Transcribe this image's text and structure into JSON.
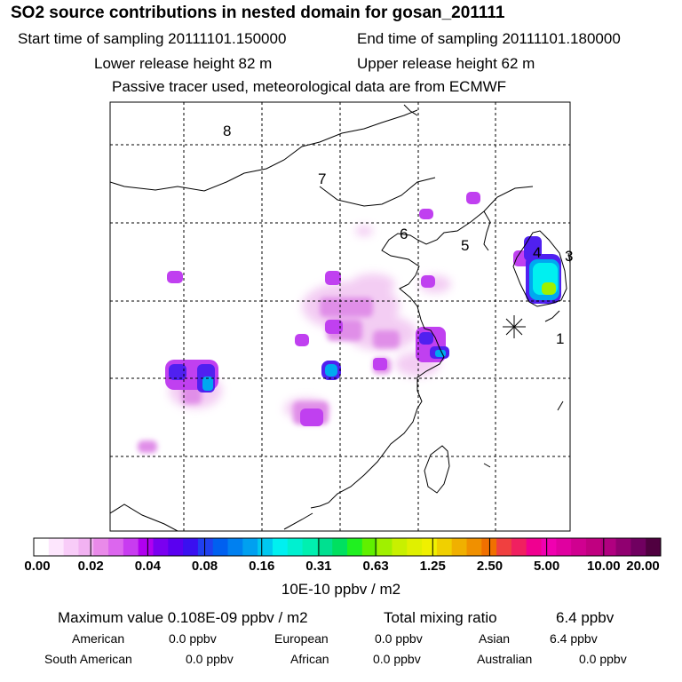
{
  "header": {
    "title": "SO2 source contributions in nested domain for gosan_201111",
    "start_label": "Start time of sampling 20111101.150000",
    "end_label": "End time of sampling 20111101.180000",
    "lower_label": "Lower release height   82 m",
    "upper_label": "Upper release height   62 m",
    "note": "Passive tracer used, meteorological data are from ECMWF"
  },
  "map": {
    "region_labels": [
      "8",
      "7",
      "6",
      "5",
      "4",
      "3",
      "1"
    ],
    "receptor_marker": "station-asterisk"
  },
  "colorbar": {
    "ticks": [
      "0.00",
      "0.02",
      "0.04",
      "0.08",
      "0.16",
      "0.31",
      "0.63",
      "1.25",
      "2.50",
      "5.00",
      "10.00",
      "20.00"
    ],
    "colors": [
      "#ffffff",
      "#fde6fd",
      "#f8ccf8",
      "#f2b2f2",
      "#e98ae9",
      "#dc66ee",
      "#c83cf0",
      "#b000f0",
      "#7a00f0",
      "#5a00f0",
      "#3a10f0",
      "#2040f0",
      "#0060f0",
      "#0080f0",
      "#00a0f0",
      "#00c8f0",
      "#00f0f0",
      "#00f0d0",
      "#00f0b0",
      "#00e090",
      "#00e060",
      "#20f020",
      "#60f000",
      "#a0f000",
      "#c8f000",
      "#e0f000",
      "#f0f000",
      "#f0d000",
      "#f0b000",
      "#f09000",
      "#f07000",
      "#f04040",
      "#f02060",
      "#f00090",
      "#f000b0",
      "#e000a0",
      "#d00090",
      "#c00080",
      "#b00080",
      "#900070",
      "#700060",
      "#500040"
    ],
    "unit": "10E-10 ppbv / m2"
  },
  "summary": {
    "max_label": "Maximum value  0.108E-09 ppbv / m2",
    "total_label": "Total mixing ratio",
    "total_value": "6.4 ppbv",
    "regions": [
      {
        "name": "American",
        "value": "0.0 ppbv"
      },
      {
        "name": "European",
        "value": "0.0 ppbv"
      },
      {
        "name": "Asian",
        "value": "6.4 ppbv"
      },
      {
        "name": "South American",
        "value": "0.0 ppbv"
      },
      {
        "name": "African",
        "value": "0.0 ppbv"
      },
      {
        "name": "Australian",
        "value": "0.0 ppbv"
      }
    ]
  }
}
